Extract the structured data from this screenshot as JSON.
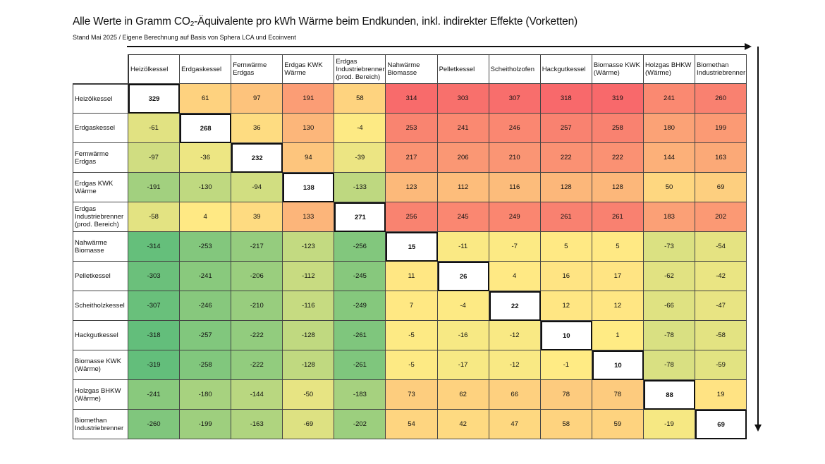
{
  "title_main": "Alle Werte in Gramm CO",
  "title_sub": "2",
  "title_rest": "-Äquivalente pro kWh Wärme beim Endkunden, inkl. indirekter Effekte (Vorketten)",
  "subtitle": "Stand Mai 2025 / Eigene Berechnung auf Basis von Sphera LCA und Ecoinvent",
  "colors": {
    "low": "#63BE7B",
    "mid": "#FFEB84",
    "high": "#F8696B",
    "diagonal": "#FFFFFF"
  },
  "chart_data": {
    "type": "heatmap",
    "color_scale": {
      "min": -319,
      "mid": 0,
      "max": 319
    },
    "columns": [
      "Heizölkessel",
      "Erdgaskessel",
      "Fernwärme Erdgas",
      "Erdgas KWK Wärme",
      "Erdgas Industriebrenner (prod. Bereich)",
      "Nahwärme Biomasse",
      "Pelletkessel",
      "Scheitholzofen",
      "Hackgutkessel",
      "Biomasse KWK (Wärme)",
      "Holzgas BHKW (Wärme)",
      "Biomethan Industriebrenner"
    ],
    "rows": [
      "Heizölkessel",
      "Erdgaskessel",
      "Fernwärme Erdgas",
      "Erdgas KWK Wärme",
      "Erdgas Industriebrenner (prod. Bereich)",
      "Nahwärme Biomasse",
      "Pelletkessel",
      "Scheitholzkessel",
      "Hackgutkessel",
      "Biomasse KWK (Wärme)",
      "Holzgas BHKW (Wärme)",
      "Biomethan Industriebrenner"
    ],
    "values": [
      [
        329,
        61,
        97,
        191,
        58,
        314,
        303,
        307,
        318,
        319,
        241,
        260
      ],
      [
        -61,
        268,
        36,
        130,
        -4,
        253,
        241,
        246,
        257,
        258,
        180,
        199
      ],
      [
        -97,
        -36,
        232,
        94,
        -39,
        217,
        206,
        210,
        222,
        222,
        144,
        163
      ],
      [
        -191,
        -130,
        -94,
        138,
        -133,
        123,
        112,
        116,
        128,
        128,
        50,
        69
      ],
      [
        -58,
        4,
        39,
        133,
        271,
        256,
        245,
        249,
        261,
        261,
        183,
        202
      ],
      [
        -314,
        -253,
        -217,
        -123,
        -256,
        15,
        -11,
        -7,
        5,
        5,
        -73,
        -54
      ],
      [
        -303,
        -241,
        -206,
        -112,
        -245,
        11,
        26,
        4,
        16,
        17,
        -62,
        -42
      ],
      [
        -307,
        -246,
        -210,
        -116,
        -249,
        7,
        -4,
        22,
        12,
        12,
        -66,
        -47
      ],
      [
        -318,
        -257,
        -222,
        -128,
        -261,
        -5,
        -16,
        -12,
        10,
        1,
        -78,
        -58
      ],
      [
        -319,
        -258,
        -222,
        -128,
        -261,
        -5,
        -17,
        -12,
        -1,
        10,
        -78,
        -59
      ],
      [
        -241,
        -180,
        -144,
        -50,
        -183,
        73,
        62,
        66,
        78,
        78,
        88,
        19
      ],
      [
        -260,
        -199,
        -163,
        -69,
        -202,
        54,
        42,
        47,
        58,
        59,
        -19,
        69
      ]
    ]
  }
}
